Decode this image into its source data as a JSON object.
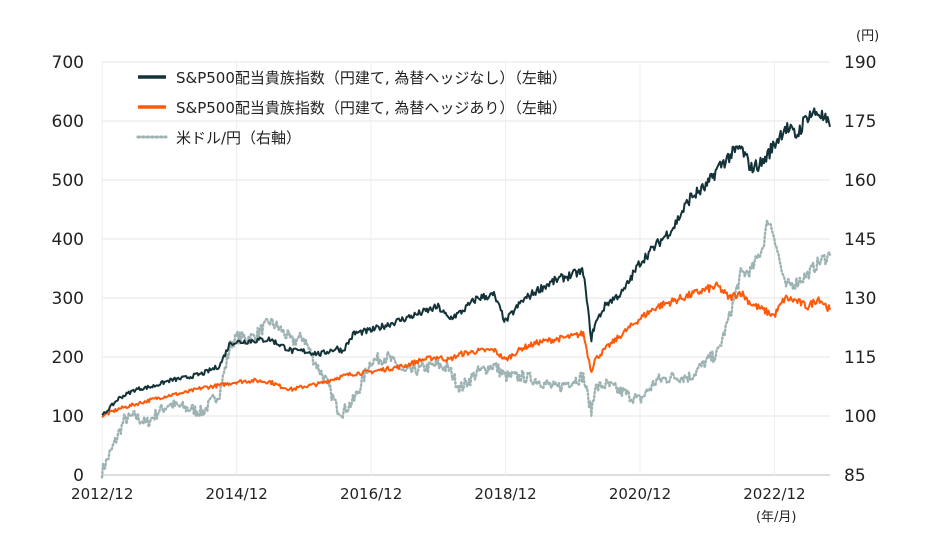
{
  "chart_data": {
    "type": "line",
    "title": "",
    "x_unit_label": "(年/月)",
    "x_ticks": [
      "2012/12",
      "2014/12",
      "2016/12",
      "2018/12",
      "2020/12",
      "2022/12"
    ],
    "x_range": [
      2012.92,
      2023.75
    ],
    "y_left": {
      "range": [
        0,
        700
      ],
      "ticks": [
        "0",
        "100",
        "200",
        "300",
        "400",
        "500",
        "600",
        "700"
      ]
    },
    "y_right": {
      "unit_label": "(円)",
      "range": [
        85,
        190
      ],
      "ticks": [
        "85",
        "100",
        "115",
        "130",
        "145",
        "160",
        "175",
        "190"
      ]
    },
    "grid": "horizontal",
    "legend_position": "top-left",
    "series": [
      {
        "name": "S&P500配当貴族指数（円建て, 為替ヘッジなし）（左軸）",
        "axis": "left",
        "color": "#143338",
        "style": "solid",
        "x": [
          2012.92,
          2013.17,
          2013.42,
          2013.67,
          2013.92,
          2014.17,
          2014.42,
          2014.67,
          2014.83,
          2014.92,
          2015.17,
          2015.42,
          2015.58,
          2015.75,
          2015.92,
          2016.17,
          2016.42,
          2016.5,
          2016.67,
          2016.92,
          2017.17,
          2017.42,
          2017.67,
          2017.92,
          2018.08,
          2018.25,
          2018.5,
          2018.75,
          2018.92,
          2019.17,
          2019.42,
          2019.67,
          2019.92,
          2020.08,
          2020.2,
          2020.25,
          2020.42,
          2020.67,
          2020.92,
          2021.17,
          2021.42,
          2021.67,
          2021.92,
          2022.08,
          2022.25,
          2022.42,
          2022.58,
          2022.75,
          2022.92,
          2023.08,
          2023.25,
          2023.42,
          2023.58,
          2023.75
        ],
        "y": [
          100,
          130,
          145,
          150,
          160,
          165,
          172,
          185,
          225,
          225,
          228,
          230,
          220,
          210,
          210,
          205,
          215,
          210,
          240,
          245,
          255,
          265,
          275,
          285,
          265,
          275,
          300,
          305,
          260,
          295,
          315,
          330,
          340,
          345,
          230,
          255,
          290,
          310,
          360,
          390,
          420,
          470,
          490,
          520,
          540,
          555,
          520,
          530,
          560,
          590,
          575,
          610,
          615,
          590
        ]
      },
      {
        "name": "S&P500配当貴族指数（円建て, 為替ヘッジあり）（左軸）",
        "axis": "left",
        "color": "#ff5a0a",
        "style": "solid",
        "x": [
          2012.92,
          2013.17,
          2013.42,
          2013.67,
          2013.92,
          2014.17,
          2014.42,
          2014.67,
          2014.92,
          2015.17,
          2015.42,
          2015.58,
          2015.75,
          2015.92,
          2016.17,
          2016.42,
          2016.67,
          2016.92,
          2017.17,
          2017.42,
          2017.67,
          2017.92,
          2018.08,
          2018.25,
          2018.5,
          2018.75,
          2018.92,
          2019.17,
          2019.42,
          2019.67,
          2019.92,
          2020.08,
          2020.2,
          2020.25,
          2020.42,
          2020.67,
          2020.92,
          2021.17,
          2021.42,
          2021.67,
          2021.92,
          2022.08,
          2022.25,
          2022.42,
          2022.58,
          2022.75,
          2022.92,
          2023.08,
          2023.25,
          2023.42,
          2023.58,
          2023.75
        ],
        "y": [
          100,
          112,
          120,
          128,
          135,
          140,
          148,
          152,
          158,
          160,
          158,
          150,
          145,
          150,
          155,
          165,
          172,
          175,
          180,
          185,
          195,
          200,
          195,
          205,
          210,
          212,
          195,
          215,
          225,
          230,
          235,
          240,
          175,
          195,
          215,
          240,
          265,
          285,
          295,
          305,
          315,
          320,
          300,
          310,
          290,
          280,
          270,
          300,
          295,
          285,
          300,
          280
        ]
      },
      {
        "name": "米ドル/円（右軸）",
        "axis": "right",
        "color": "#9db3b3",
        "style": "dotted",
        "x": [
          2012.92,
          2013.08,
          2013.25,
          2013.42,
          2013.58,
          2013.75,
          2013.92,
          2014.17,
          2014.42,
          2014.67,
          2014.83,
          2014.92,
          2015.17,
          2015.42,
          2015.58,
          2015.75,
          2015.92,
          2016.08,
          2016.25,
          2016.42,
          2016.5,
          2016.67,
          2016.92,
          2017.17,
          2017.42,
          2017.67,
          2017.92,
          2018.08,
          2018.25,
          2018.5,
          2018.75,
          2018.92,
          2019.17,
          2019.42,
          2019.67,
          2019.92,
          2020.08,
          2020.2,
          2020.25,
          2020.42,
          2020.67,
          2020.92,
          2021.17,
          2021.42,
          2021.67,
          2021.92,
          2022.08,
          2022.25,
          2022.42,
          2022.58,
          2022.75,
          2022.83,
          2022.92,
          2023.08,
          2023.25,
          2023.42,
          2023.58,
          2023.75
        ],
        "y": [
          86,
          92,
          99,
          100,
          98,
          101,
          103,
          102,
          101,
          106,
          118,
          120,
          120,
          124,
          122,
          119,
          120,
          114,
          109,
          102,
          101,
          104,
          114,
          115,
          111,
          112,
          113,
          112,
          107,
          111,
          113,
          110,
          110,
          109,
          107,
          109,
          110,
          101,
          107,
          108,
          106,
          104,
          109,
          110,
          110,
          114,
          116,
          125,
          136,
          137,
          143,
          150,
          146,
          133,
          134,
          136,
          139,
          141
        ]
      }
    ]
  }
}
